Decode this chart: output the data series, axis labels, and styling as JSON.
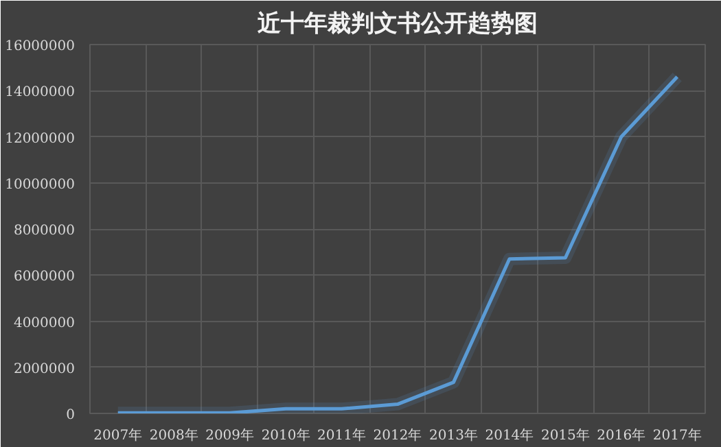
{
  "chart_data": {
    "type": "line",
    "title": "近十年裁判文书公开趋势图",
    "categories": [
      "2007年",
      "2008年",
      "2009年",
      "2010年",
      "2011年",
      "2012年",
      "2013年",
      "2014年",
      "2015年",
      "2016年",
      "2017年"
    ],
    "series": [
      {
        "color": "#5b9bd5",
        "values": [
          20000,
          20000,
          20000,
          200000,
          200000,
          400000,
          1350000,
          6700000,
          6750000,
          12000000,
          14600000
        ]
      }
    ],
    "ylim": [
      0,
      16000000
    ],
    "yticks": [
      0,
      2000000,
      4000000,
      6000000,
      8000000,
      10000000,
      12000000,
      14000000,
      16000000
    ],
    "grid": true,
    "line_style": "solid"
  }
}
